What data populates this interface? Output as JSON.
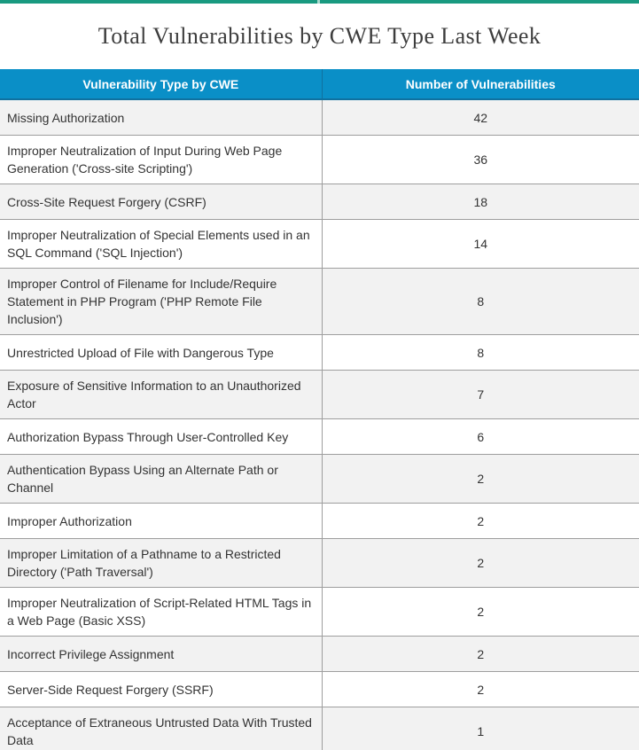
{
  "title": "Total Vulnerabilities by CWE Type Last Week",
  "theme": {
    "top_bar_color": "#199a80",
    "header_background": "#0a8fc7",
    "header_border": "#10719f",
    "row_alt_background": "#f2f2f2",
    "row_border": "#9e9e9e",
    "text_color": "#333333"
  },
  "chart_data": {
    "type": "table",
    "title": "Total Vulnerabilities by CWE Type Last Week",
    "columns": [
      "Vulnerability Type by CWE",
      "Number of Vulnerabilities"
    ],
    "categories": [
      "Missing Authorization",
      "Improper Neutralization of Input During Web Page Generation ('Cross-site Scripting')",
      "Cross-Site Request Forgery (CSRF)",
      "Improper Neutralization of Special Elements used in an SQL Command ('SQL Injection')",
      "Improper Control of Filename for Include/Require Statement in PHP Program ('PHP Remote File Inclusion')",
      "Unrestricted Upload of File with Dangerous Type",
      "Exposure of Sensitive Information to an Unauthorized Actor",
      "Authorization Bypass Through User-Controlled Key",
      "Authentication Bypass Using an Alternate Path or Channel",
      "Improper Authorization",
      "Improper Limitation of a Pathname to a Restricted Directory ('Path Traversal')",
      "Improper Neutralization of Script-Related HTML Tags in a Web Page (Basic XSS)",
      "Incorrect Privilege Assignment",
      "Server-Side Request Forgery (SSRF)",
      "Acceptance of Extraneous Untrusted Data With Trusted Data"
    ],
    "values": [
      42,
      36,
      18,
      14,
      8,
      8,
      7,
      6,
      2,
      2,
      2,
      2,
      2,
      2,
      1
    ]
  }
}
